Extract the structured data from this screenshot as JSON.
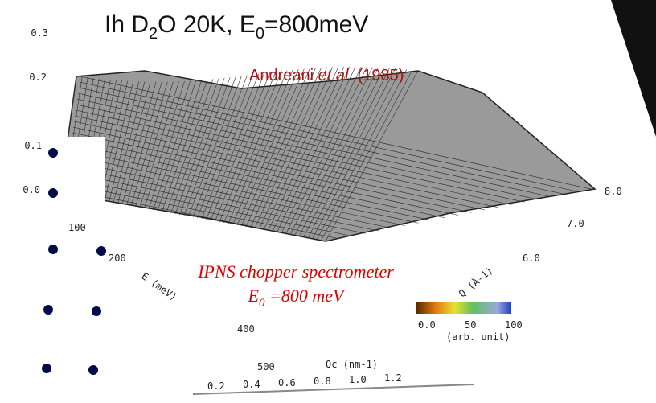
{
  "title": {
    "prefix": "Ih D",
    "sub1": "2",
    "mid": "O 20K, E",
    "sub2": "0",
    "suffix": "=800meV"
  },
  "citation": {
    "authors": "Andreani ",
    "etal": "et al",
    "rest": ". (1985)"
  },
  "instrument": {
    "line1": "IPNS chopper spectrometer",
    "line2_prefix": "E",
    "line2_sub": "0",
    "line2_suffix": " =800 meV"
  },
  "plot": {
    "intensity_ticks": [
      "0.3",
      "0.2",
      "0.1",
      "0.0"
    ],
    "energy_ticks": [
      "100",
      "200",
      "400",
      "500"
    ],
    "energy_label": "E (meV)",
    "q_ticks": [
      "8.0",
      "7.0",
      "6.0"
    ],
    "q_label": "Q (Å-1)"
  },
  "colorbar": {
    "ticks": [
      "0.0",
      "50",
      "100"
    ],
    "unit": "(arb. unit)"
  },
  "qc_scale": {
    "label": "Qc (nm-1)",
    "ticks": [
      "0.2",
      "0.4",
      "0.6",
      "0.8",
      "1.0",
      "1.2"
    ]
  }
}
